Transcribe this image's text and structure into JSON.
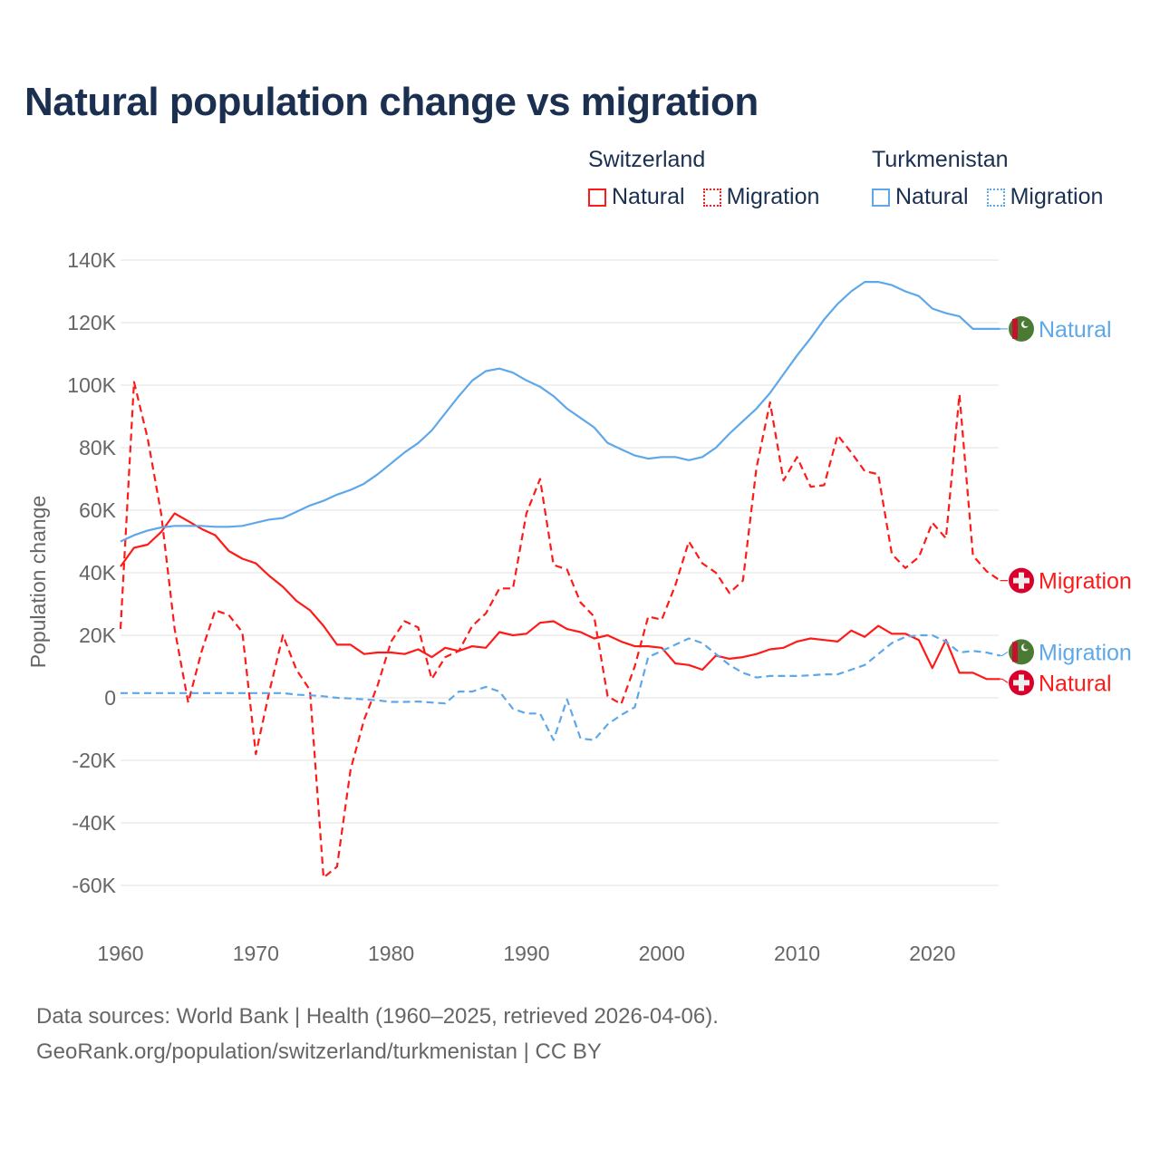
{
  "chart_data": {
    "type": "line",
    "title": "Natural population change vs migration",
    "ylabel": "Population change",
    "xlabel": "",
    "ylim": [
      -70000,
      140000
    ],
    "xlim": [
      1960,
      2025
    ],
    "grid": true,
    "y_ticks": [
      -60000,
      -40000,
      -20000,
      0,
      20000,
      40000,
      60000,
      80000,
      100000,
      120000,
      140000
    ],
    "y_tick_labels": [
      "-60K",
      "-40K",
      "-20K",
      "0",
      "20K",
      "40K",
      "60K",
      "80K",
      "100K",
      "120K",
      "140K"
    ],
    "x_ticks": [
      1960,
      1970,
      1980,
      1990,
      2000,
      2010,
      2020
    ],
    "x_tick_labels": [
      "1960",
      "1970",
      "1980",
      "1990",
      "2000",
      "2010",
      "2020"
    ],
    "legend_placement": "top-right",
    "legend": {
      "groups": [
        {
          "country": "Switzerland",
          "items": [
            {
              "label": "Natural",
              "style": "solid"
            },
            {
              "label": "Migration",
              "style": "dotted"
            }
          ],
          "color": "#ff1a1a"
        },
        {
          "country": "Turkmenistan",
          "items": [
            {
              "label": "Natural",
              "style": "solid"
            },
            {
              "label": "Migration",
              "style": "dotted"
            }
          ],
          "color": "#5ea8ea"
        }
      ]
    },
    "x_start": 1960,
    "series": [
      {
        "name": "Switzerland Natural",
        "country": "Switzerland",
        "end_label": "Natural",
        "color": "#ff1a1a",
        "dashed": false,
        "flag": "switzerland",
        "values": [
          42000,
          48000,
          49000,
          53000,
          59000,
          56500,
          54000,
          52000,
          47000,
          44500,
          43000,
          39000,
          35500,
          31000,
          28000,
          23000,
          17000,
          17000,
          14000,
          14500,
          14500,
          14000,
          15500,
          13000,
          16000,
          15000,
          16500,
          16000,
          21000,
          20000,
          20500,
          24000,
          24500,
          22000,
          21000,
          19000,
          20000,
          18000,
          16500,
          16500,
          16000,
          11000,
          10500,
          9000,
          13500,
          12500,
          13000,
          14000,
          15500,
          16000,
          18000,
          19000,
          18500,
          18000,
          21500,
          19500,
          23000,
          20500,
          20500,
          18500,
          9500,
          18500,
          8000,
          8000,
          6000,
          6000
        ]
      },
      {
        "name": "Switzerland Migration",
        "country": "Switzerland",
        "end_label": "Migration",
        "color": "#ff1a1a",
        "dashed": true,
        "flag": "switzerland",
        "values": [
          22000,
          101000,
          83000,
          59000,
          22000,
          -1500,
          15000,
          28000,
          26500,
          21000,
          -18000,
          2000,
          20000,
          9000,
          2500,
          -57500,
          -54000,
          -23000,
          -7000,
          4000,
          18000,
          24500,
          22500,
          6000,
          13000,
          15000,
          23000,
          27000,
          35000,
          35000,
          59000,
          70000,
          42500,
          41000,
          30500,
          26000,
          500,
          -2000,
          10000,
          26000,
          25000,
          36000,
          50000,
          43000,
          40000,
          33500,
          37500,
          73500,
          94500,
          69500,
          77000,
          67500,
          68000,
          84000,
          78500,
          72500,
          71500,
          46000,
          41500,
          45000,
          56000,
          51000,
          97000,
          45500,
          40500,
          37500
        ]
      },
      {
        "name": "Turkmenistan Natural",
        "country": "Turkmenistan",
        "end_label": "Natural",
        "color": "#5ea8ea",
        "dashed": false,
        "flag": "turkmenistan",
        "values": [
          50000,
          52000,
          53500,
          54500,
          55000,
          55000,
          55000,
          54700,
          54700,
          55000,
          56000,
          57000,
          57500,
          59500,
          61500,
          63000,
          65000,
          66500,
          68500,
          71500,
          75000,
          78500,
          81500,
          85500,
          91000,
          96500,
          101500,
          104500,
          105300,
          104000,
          101500,
          99500,
          96500,
          92500,
          89500,
          86500,
          81500,
          79500,
          77500,
          76500,
          77000,
          77000,
          76000,
          77000,
          80000,
          84500,
          88500,
          92500,
          97500,
          103500,
          109500,
          115000,
          121000,
          126000,
          130000,
          133000,
          133000,
          132000,
          130000,
          128500,
          124500,
          123000,
          122000,
          118000,
          118000,
          118000
        ]
      },
      {
        "name": "Turkmenistan Migration",
        "country": "Turkmenistan",
        "end_label": "Migration",
        "color": "#5ea8ea",
        "dashed": true,
        "flag": "turkmenistan",
        "values": [
          1500,
          1500,
          1500,
          1500,
          1500,
          1500,
          1500,
          1500,
          1500,
          1500,
          1500,
          1500,
          1500,
          1000,
          800,
          500,
          0,
          -200,
          -500,
          -800,
          -1300,
          -1300,
          -1200,
          -1500,
          -1800,
          2000,
          2000,
          3500,
          2000,
          -3500,
          -5000,
          -5000,
          -13500,
          -500,
          -13000,
          -13500,
          -8500,
          -5500,
          -3000,
          13000,
          15000,
          17000,
          19000,
          17500,
          14000,
          10500,
          8000,
          6500,
          7000,
          7000,
          7000,
          7200,
          7500,
          7500,
          9000,
          10500,
          14000,
          17500,
          19500,
          20000,
          20000,
          18000,
          14500,
          15000,
          14500,
          13500
        ]
      }
    ]
  },
  "source": {
    "line1": "Data sources: World Bank | Health (1960–2025, retrieved 2026-04-06).",
    "line2": "GeoRank.org/population/switzerland/turkmenistan | CC BY"
  }
}
